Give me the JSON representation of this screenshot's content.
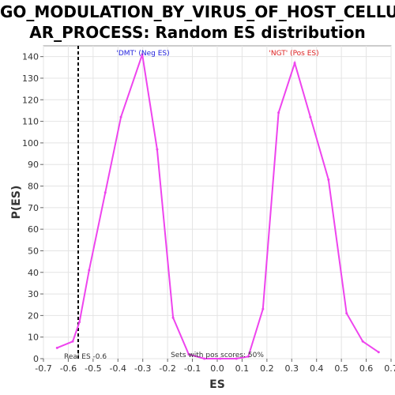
{
  "chart_data": {
    "type": "line",
    "title_line1": "GO_MODULATION_BY_VIRUS_OF_HOST_CELLUL",
    "title_line2": "AR_PROCESS: Random ES distribution",
    "xlabel": "ES",
    "ylabel": "P(ES)",
    "xlim": [
      -0.7,
      0.7
    ],
    "ylim": [
      0,
      145
    ],
    "x_ticks": [
      "-0.7",
      "-0.6",
      "-0.5",
      "-0.4",
      "-0.3",
      "-0.2",
      "-0.1",
      "0.0",
      "0.1",
      "0.2",
      "0.3",
      "0.4",
      "0.5",
      "0.6",
      "0.7"
    ],
    "x_tick_values": [
      -0.7,
      -0.6,
      -0.5,
      -0.4,
      -0.3,
      -0.2,
      -0.1,
      0.0,
      0.1,
      0.2,
      0.3,
      0.4,
      0.5,
      0.6,
      0.7
    ],
    "y_ticks": [
      0,
      10,
      20,
      30,
      40,
      50,
      60,
      70,
      80,
      90,
      100,
      110,
      120,
      130,
      140
    ],
    "series": [
      {
        "color": "#ee44ee",
        "x": [
          -0.645,
          -0.582,
          -0.555,
          -0.516,
          -0.451,
          -0.388,
          -0.302,
          -0.242,
          -0.178,
          -0.115,
          -0.052,
          0.012,
          0.077,
          0.125,
          0.184,
          0.247,
          0.312,
          0.375,
          0.448,
          0.521,
          0.586,
          0.65
        ],
        "y": [
          5,
          8,
          17,
          41,
          77,
          112,
          141,
          97,
          19,
          2,
          0,
          0,
          0,
          1,
          23,
          114,
          137,
          112,
          83,
          21,
          8,
          3
        ]
      }
    ],
    "real_es": -0.56,
    "annotations": {
      "neg_label": "'DMT' (Neg ES)",
      "neg_color": "#2222dd",
      "pos_label": "'NGT' (Pos ES)",
      "pos_color": "#dd2222",
      "real_es_label": "Real ES -0.6",
      "pos_scores_label": "Sets with pos scores: 50%"
    },
    "grid": true
  }
}
